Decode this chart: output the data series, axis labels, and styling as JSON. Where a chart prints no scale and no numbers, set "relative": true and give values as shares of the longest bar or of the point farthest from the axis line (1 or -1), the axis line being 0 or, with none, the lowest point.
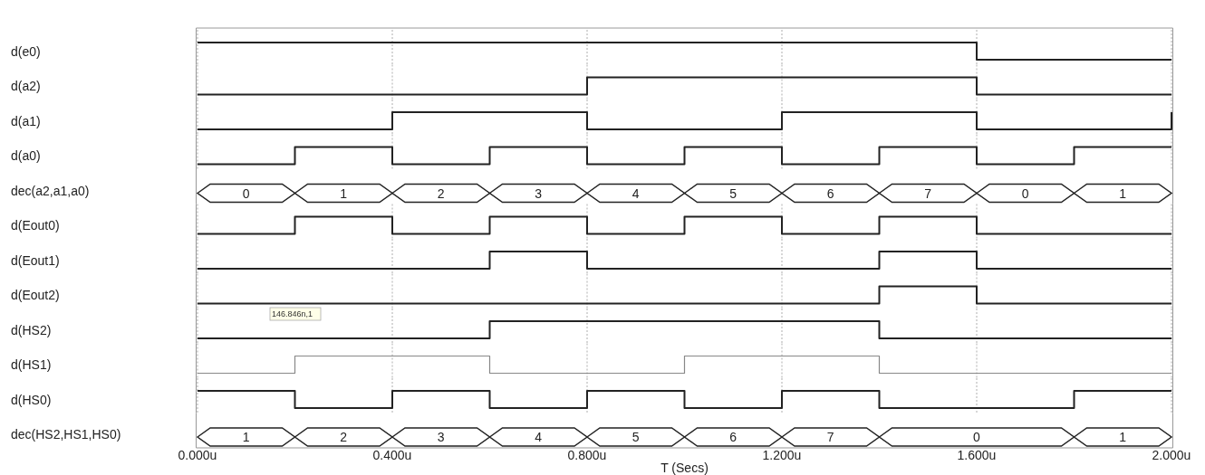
{
  "chart_data": [
    {
      "type": "step",
      "ylabel": "d(e0)",
      "relative": true,
      "x": [
        0,
        0.8,
        1.6,
        2
      ],
      "values": [
        1,
        1,
        0,
        0
      ],
      "color": "#222222",
      "xlim": [
        0,
        2
      ],
      "xticks": [
        0,
        0.4,
        0.8,
        1.2,
        1.6,
        2
      ],
      "tick_labels": false,
      "grid": "x"
    },
    {
      "type": "step",
      "ylabel": "d(a2)",
      "relative": true,
      "x": [
        0,
        0.8,
        1.6,
        2
      ],
      "values": [
        0,
        1,
        0,
        0
      ],
      "color": "#222222",
      "xlim": [
        0,
        2
      ],
      "xticks": [
        0,
        0.4,
        0.8,
        1.2,
        1.6,
        2
      ],
      "tick_labels": false,
      "grid": "x"
    },
    {
      "type": "step",
      "ylabel": "d(a1)",
      "relative": true,
      "x": [
        0,
        0.4,
        0.8,
        1.2,
        1.6,
        2
      ],
      "values": [
        0,
        1,
        0,
        1,
        0,
        1
      ],
      "color": "#222222",
      "xlim": [
        0,
        2
      ],
      "xticks": [
        0,
        0.4,
        0.8,
        1.2,
        1.6,
        2
      ],
      "tick_labels": false,
      "grid": "x"
    },
    {
      "type": "step",
      "ylabel": "d(a0)",
      "relative": true,
      "x": [
        0,
        0.2,
        0.4,
        0.6,
        0.8,
        1.0,
        1.2,
        1.4,
        1.6,
        1.8,
        2
      ],
      "values": [
        0,
        1,
        0,
        1,
        0,
        1,
        0,
        1,
        0,
        1,
        1
      ],
      "color": "#222222",
      "xlim": [
        0,
        2
      ],
      "xticks": [
        0,
        0.4,
        0.8,
        1.2,
        1.6,
        2
      ],
      "tick_labels": false,
      "grid": "x"
    },
    {
      "type": "other",
      "ylabel": "dec(a2,a1,a0)",
      "categories": [
        null,
        null,
        null,
        null,
        null,
        null,
        null,
        null,
        null,
        null
      ],
      "values": [
        0,
        1,
        2,
        3,
        4,
        5,
        6,
        7,
        0,
        1
      ],
      "data_labels": true,
      "color": "#222222"
    },
    {
      "type": "step",
      "ylabel": "d(Eout0)",
      "relative": true,
      "x": [
        0,
        0.2,
        0.4,
        0.6,
        0.8,
        1.0,
        1.2,
        1.4,
        1.6,
        2
      ],
      "values": [
        0,
        1,
        0,
        1,
        0,
        1,
        0,
        1,
        0,
        0
      ],
      "color": "#222222",
      "xlim": [
        0,
        2
      ],
      "xticks": [
        0,
        0.4,
        0.8,
        1.2,
        1.6,
        2
      ],
      "tick_labels": false,
      "grid": "x"
    },
    {
      "type": "step",
      "ylabel": "d(Eout1)",
      "relative": true,
      "x": [
        0,
        0.6,
        0.8,
        1.4,
        1.6,
        2
      ],
      "values": [
        0,
        1,
        0,
        1,
        0,
        0
      ],
      "color": "#222222",
      "xlim": [
        0,
        2
      ],
      "xticks": [
        0,
        0.4,
        0.8,
        1.2,
        1.6,
        2
      ],
      "tick_labels": false,
      "grid": "x"
    },
    {
      "type": "step",
      "ylabel": "d(Eout2)",
      "relative": true,
      "x": [
        0,
        1.4,
        1.6,
        2
      ],
      "values": [
        0,
        1,
        0,
        0
      ],
      "color": "#222222",
      "xlim": [
        0,
        2
      ],
      "xticks": [
        0,
        0.4,
        0.8,
        1.2,
        1.6,
        2
      ],
      "tick_labels": false,
      "grid": "x"
    },
    {
      "type": "step",
      "ylabel": "d(HS2)",
      "relative": true,
      "x": [
        0,
        0.6,
        1.4,
        2
      ],
      "values": [
        0,
        1,
        0,
        0
      ],
      "color": "#222222",
      "xlim": [
        0,
        2
      ],
      "xticks": [
        0,
        0.4,
        0.8,
        1.2,
        1.6,
        2
      ],
      "tick_labels": false,
      "grid": "x",
      "annotations": [
        "146.846n,1"
      ]
    },
    {
      "type": "step",
      "ylabel": "d(HS1)",
      "relative": true,
      "x": [
        0,
        0.2,
        0.6,
        1.0,
        1.4,
        2
      ],
      "values": [
        0,
        1,
        0,
        1,
        0,
        0
      ],
      "color": "#888888",
      "xlim": [
        0,
        2
      ],
      "xticks": [
        0,
        0.4,
        0.8,
        1.2,
        1.6,
        2
      ],
      "tick_labels": false,
      "grid": "x"
    },
    {
      "type": "step",
      "ylabel": "d(HS0)",
      "xlabel": "T (Secs)",
      "relative": true,
      "x": [
        0,
        0.2,
        0.4,
        0.6,
        0.8,
        1.0,
        1.2,
        1.4,
        1.8,
        2
      ],
      "values": [
        1,
        0,
        1,
        0,
        1,
        0,
        1,
        0,
        1,
        1
      ],
      "color": "#222222",
      "xlim": [
        0,
        2
      ],
      "xticks": [
        {
          "value": 0,
          "label": "0.000u"
        },
        {
          "value": 0.4,
          "label": "0.400u"
        },
        {
          "value": 0.8,
          "label": "0.800u"
        },
        {
          "value": 1.2,
          "label": "1.200u"
        },
        {
          "value": 1.6,
          "label": "1.600u"
        },
        {
          "value": 2,
          "label": "2.000u"
        }
      ],
      "tick_labels": "x",
      "grid": "x"
    },
    {
      "type": "other",
      "ylabel": "dec(HS2,HS1,HS0)",
      "categories": [
        null,
        null,
        null,
        null,
        null,
        null,
        null,
        null,
        null,
        null
      ],
      "values": [
        1,
        2,
        3,
        4,
        5,
        6,
        7,
        0,
        null,
        1
      ],
      "data_labels": true,
      "color": "#222222"
    }
  ]
}
